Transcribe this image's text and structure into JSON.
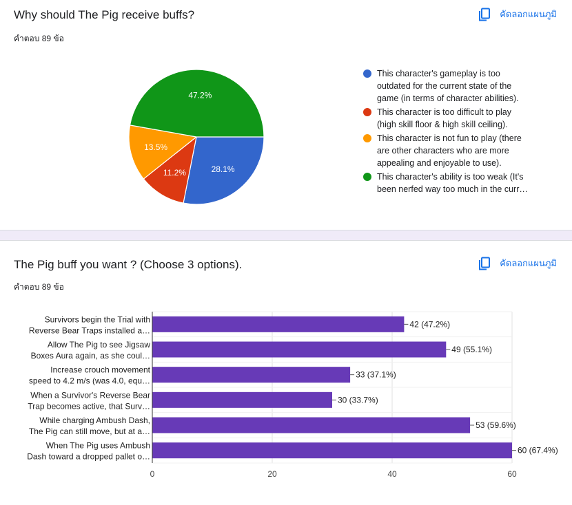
{
  "questions": [
    {
      "title": "Why should The Pig receive buffs?",
      "response_count": "คำตอบ 89 ข้อ",
      "copy_label": "คัดลอกแผนภูมิ"
    },
    {
      "title": "The Pig buff you want ? (Choose 3 options).",
      "response_count": "คำตอบ 89 ข้อ",
      "copy_label": "คัดลอกแผนภูมิ"
    }
  ],
  "chart_data": [
    {
      "type": "pie",
      "categories": [
        "This character's gameplay is too outdated for the current state of the game (in terms of character abilities).",
        "This character is too difficult to play (high skill floor & high skill ceiling).",
        "This character is not fun to play (there are other characters who are more appealing and enjoyable to use).",
        "This character's ability is too weak (It's been nerfed way too much in the curr…"
      ],
      "legend_lines": [
        [
          "This character's gameplay is too",
          "outdated for the current state of the",
          "game (in terms of character abilities)."
        ],
        [
          "This character is too difficult to play",
          "(high skill floor & high skill ceiling)."
        ],
        [
          "This character is not fun to play (there",
          "are other characters who are more",
          "appealing and enjoyable to use)."
        ],
        [
          "This character's ability is too weak (It's",
          "been nerfed way too much in the curr…"
        ]
      ],
      "values": [
        28.1,
        11.2,
        13.5,
        47.2
      ],
      "labels": [
        "28.1%",
        "11.2%",
        "13.5%",
        "47.2%"
      ],
      "colors": [
        "#3366cc",
        "#dc3912",
        "#ff9900",
        "#109618"
      ],
      "legend_position": "right"
    },
    {
      "type": "bar",
      "orientation": "horizontal",
      "categories": [
        [
          "Survivors begin the Trial with",
          "Reverse Bear Traps installed a…"
        ],
        [
          "Allow The Pig to see Jigsaw",
          "Boxes Aura again, as she coul…"
        ],
        [
          "Increase crouch movement",
          "speed to 4.2 m/s (was 4.0, equ…"
        ],
        [
          "When a Survivor's Reverse Bear",
          "Trap becomes active, that Surv…"
        ],
        [
          "While charging Ambush Dash,",
          "The Pig can still move, but at a…"
        ],
        [
          "When The Pig uses Ambush",
          "Dash toward a dropped pallet o…"
        ]
      ],
      "values": [
        42,
        49,
        33,
        30,
        53,
        60
      ],
      "data_labels": [
        "42 (47.2%)",
        "49 (55.1%)",
        "33 (37.1%)",
        "30 (33.7%)",
        "53 (59.6%)",
        "60 (67.4%)"
      ],
      "color": "#673ab7",
      "xlim": [
        0,
        60
      ],
      "xticks": [
        0,
        20,
        40,
        60
      ],
      "xtick_labels": [
        "0",
        "20",
        "40",
        "60"
      ],
      "grid": true
    }
  ]
}
